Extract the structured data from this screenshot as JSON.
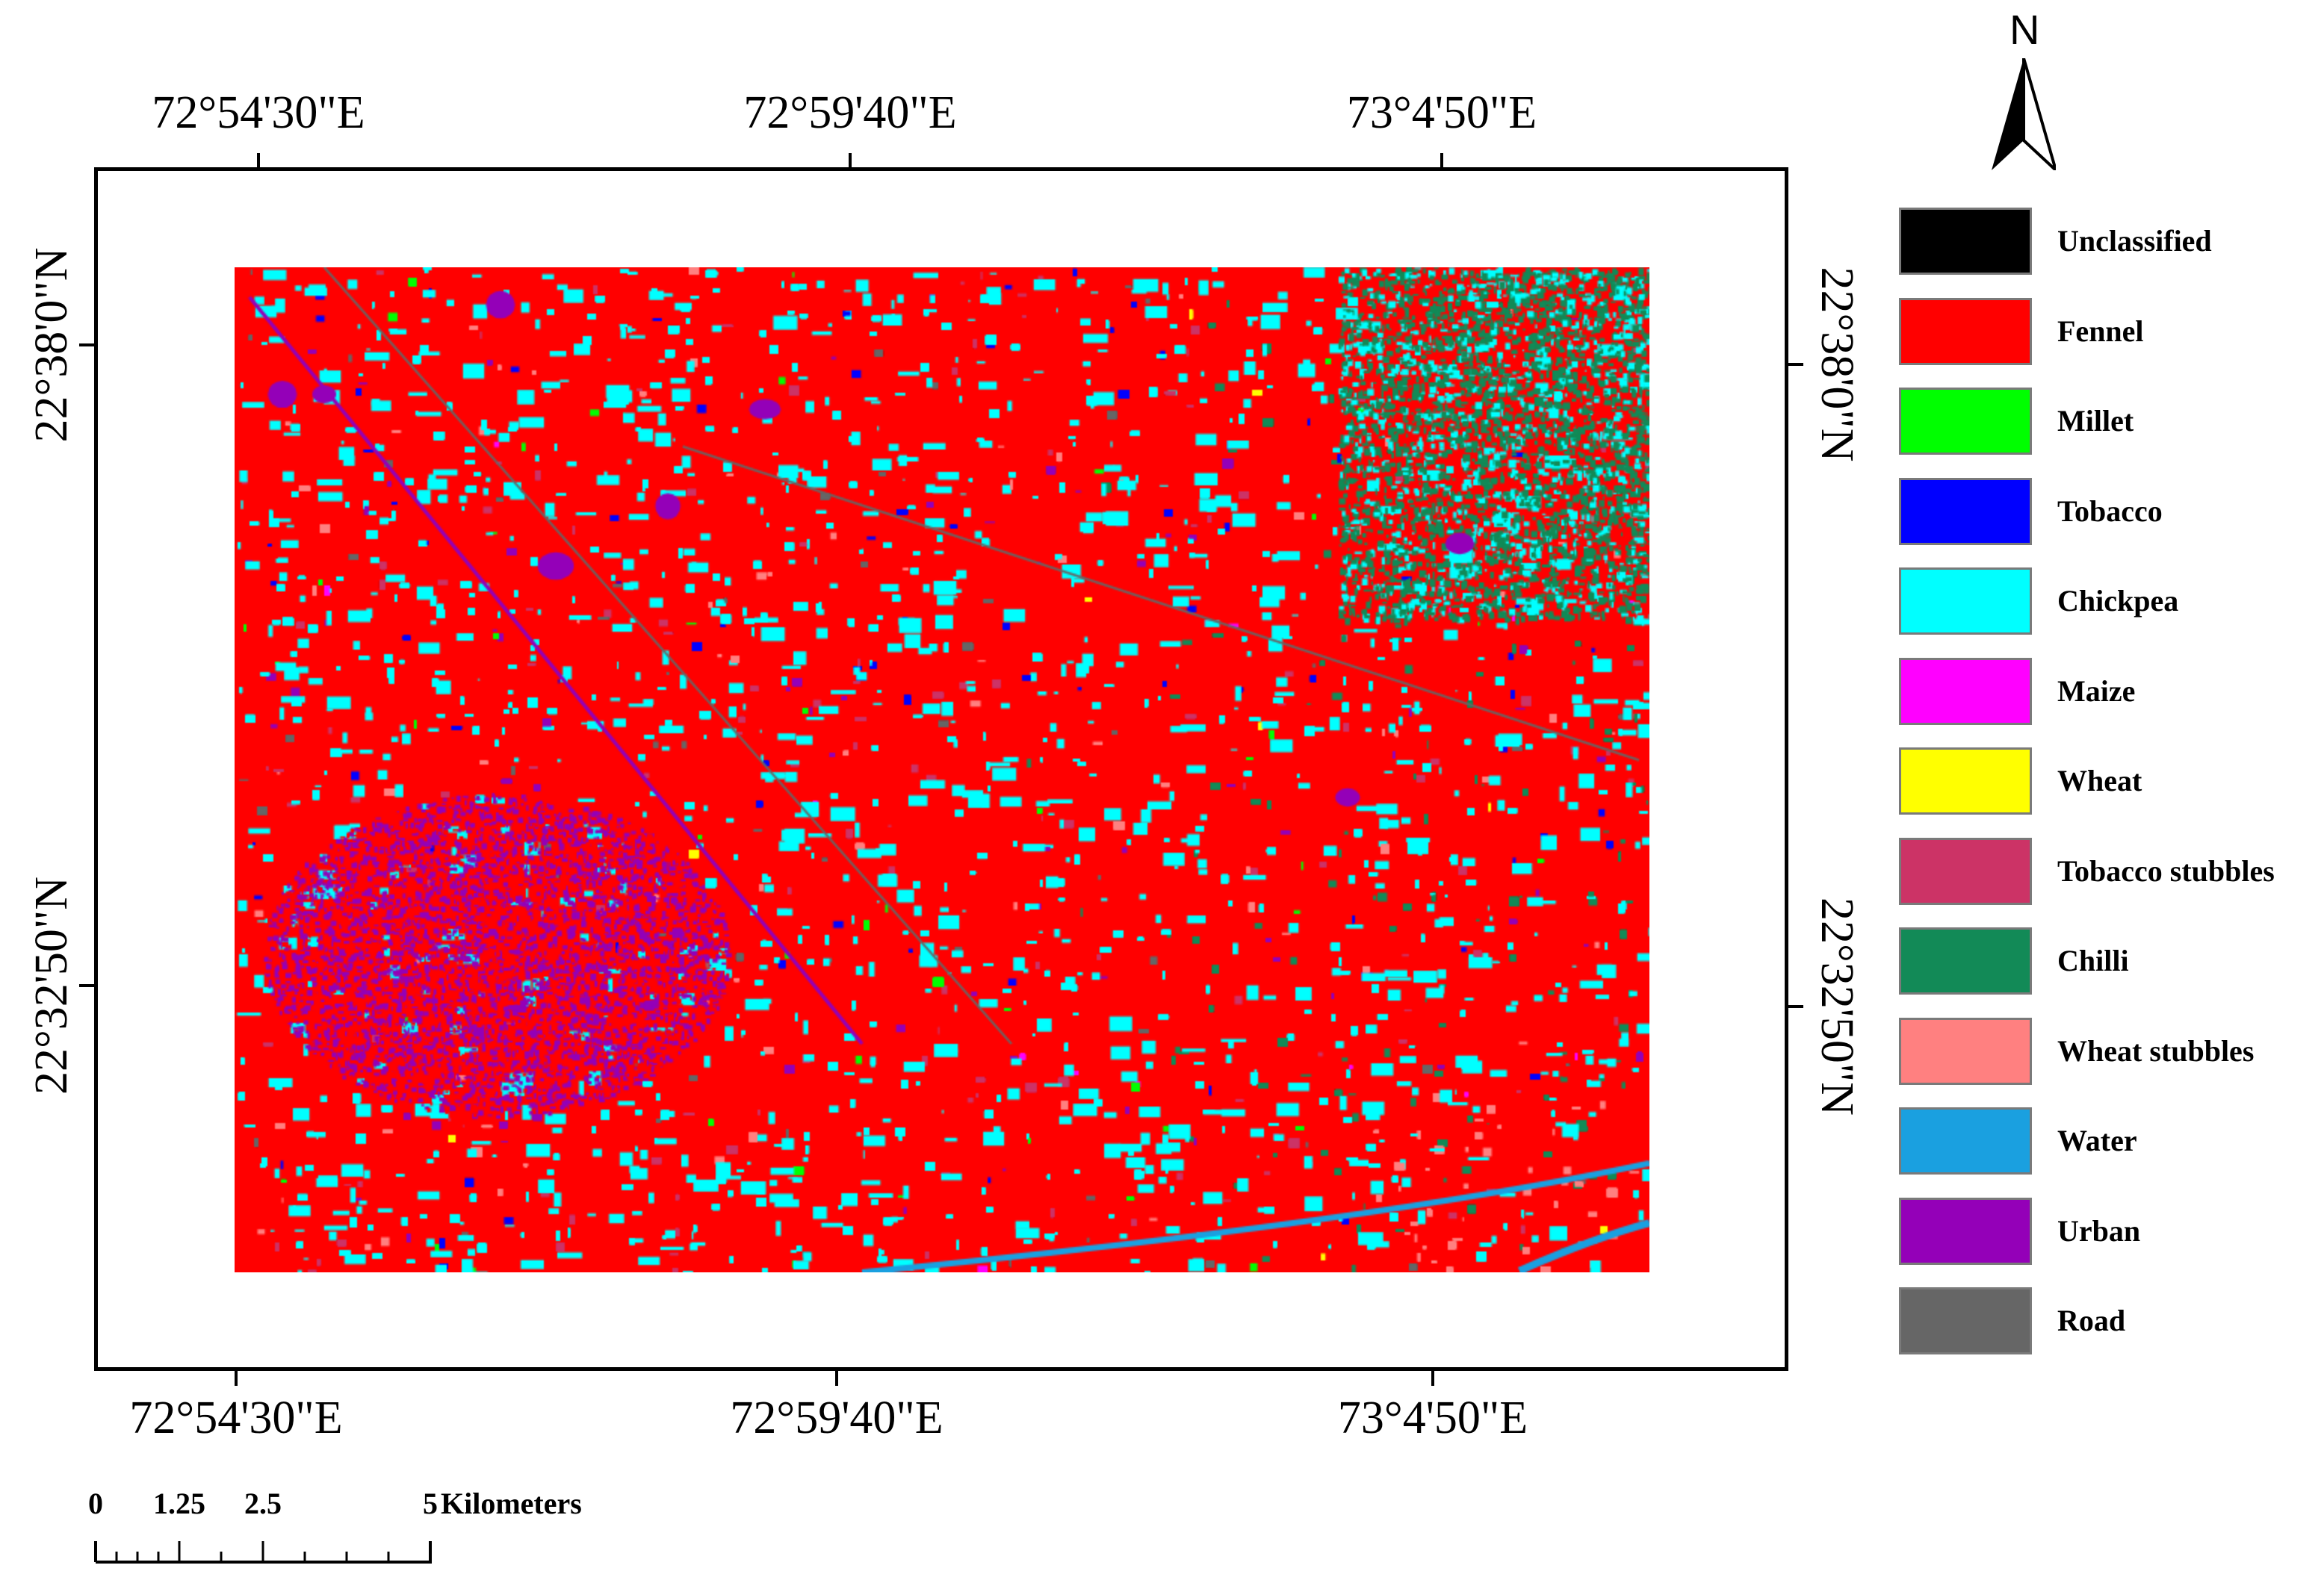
{
  "map": {
    "top_coords": [
      "72°54'30\"E",
      "72°59'40\"E",
      "73°4'50\"E"
    ],
    "bottom_coords": [
      "72°54'30\"E",
      "72°59'40\"E",
      "73°4'50\"E"
    ],
    "left_coords": [
      "22°38'0\"N",
      "22°32'50\"N"
    ],
    "right_coords": [
      "22°38'0\"N",
      "22°32'50\"N"
    ],
    "classified_raster": "land cover classification raster",
    "background_class": "Fennel"
  },
  "north_arrow": {
    "label": "N",
    "icon": "north-arrow-icon"
  },
  "legend": {
    "items": [
      {
        "label": "Unclassified",
        "color": "#000000"
      },
      {
        "label": "Fennel",
        "color": "#FF0000"
      },
      {
        "label": "Millet",
        "color": "#00FF00"
      },
      {
        "label": "Tobacco",
        "color": "#0000FF"
      },
      {
        "label": "Chickpea",
        "color": "#00FFFF"
      },
      {
        "label": "Maize",
        "color": "#FF00FF"
      },
      {
        "label": "Wheat",
        "color": "#FFFF00"
      },
      {
        "label": "Tobacco stubbles",
        "color": "#CC3366"
      },
      {
        "label": "Chilli",
        "color": "#128A57"
      },
      {
        "label": "Wheat stubbles",
        "color": "#FF8080"
      },
      {
        "label": "Water",
        "color": "#1AA0E0"
      },
      {
        "label": "Urban",
        "color": "#9400B8"
      },
      {
        "label": "Road",
        "color": "#666666"
      }
    ]
  },
  "scale_bar": {
    "labels": [
      "0",
      "1.25",
      "2.5",
      "5"
    ],
    "unit": "Kilometers"
  }
}
